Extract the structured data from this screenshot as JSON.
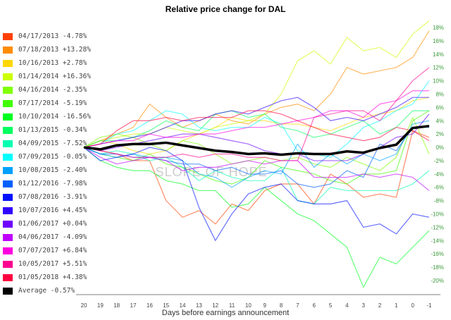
{
  "chart_data": {
    "type": "line",
    "title": "Relative price change for DAL",
    "xlabel": "Days before earnings announcement",
    "ylabel": "",
    "x": [
      20,
      19,
      18,
      17,
      16,
      15,
      14,
      13,
      12,
      11,
      10,
      9,
      8,
      7,
      6,
      5,
      4,
      3,
      2,
      1,
      0,
      -1
    ],
    "ylim": [
      -20,
      18
    ],
    "yticks": [
      "18%",
      "16%",
      "14%",
      "12%",
      "10%",
      "8%",
      "6%",
      "4%",
      "2%",
      "0%",
      "-2%",
      "-4%",
      "-6%",
      "-8%",
      "-10%",
      "-12%",
      "-14%",
      "-16%",
      "-18%",
      "-20%"
    ],
    "ytick_values": [
      18,
      16,
      14,
      12,
      10,
      8,
      6,
      4,
      2,
      0,
      -2,
      -4,
      -6,
      -8,
      -10,
      -12,
      -14,
      -16,
      -18,
      -20
    ],
    "grid": false,
    "legend_position": "left",
    "watermark": "SLOPE OF HOPE",
    "series": [
      {
        "name": "04/17/2013 -4.78%",
        "color": "#ff4000",
        "values": [
          0,
          -0.5,
          -1,
          -2,
          -2,
          -8,
          -10.5,
          -9.5,
          -11.5,
          -8.5,
          -9.5,
          -6.5,
          -5.5,
          -5.5,
          -8.5,
          -4,
          -5.5,
          -7.5,
          -7,
          -7.5,
          2.5,
          1.5
        ]
      },
      {
        "name": "07/18/2013 +13.28%",
        "color": "#ff8c00",
        "values": [
          0,
          1,
          2,
          3,
          6.5,
          4.5,
          3,
          4,
          5,
          4,
          3.5,
          5,
          6,
          6.5,
          5.5,
          8,
          12,
          11,
          11.5,
          12,
          13.5,
          17.5
        ]
      },
      {
        "name": "10/16/2013 +2.78%",
        "color": "#ffd700",
        "values": [
          0,
          1,
          0.5,
          -0.5,
          -1,
          -0.5,
          1,
          2,
          3,
          4.5,
          4,
          4,
          3.5,
          3.5,
          3,
          2.5,
          3.5,
          4.5,
          5,
          5.5,
          7,
          7.5
        ]
      },
      {
        "name": "01/14/2014 +16.36%",
        "color": "#ccff00",
        "values": [
          0,
          1,
          1.5,
          2,
          2,
          3,
          2.5,
          2,
          3,
          3.5,
          4,
          5,
          8,
          13,
          14.5,
          12.5,
          16.5,
          14.5,
          15,
          13.5,
          17,
          19
        ]
      },
      {
        "name": "04/16/2014 -2.35%",
        "color": "#80ff00",
        "values": [
          0,
          1.5,
          2,
          1.5,
          0.5,
          -0.5,
          1,
          0.5,
          -1,
          -2.5,
          -2,
          -1.5,
          -2,
          -1.5,
          -2.5,
          -3,
          -1.5,
          -2.5,
          -3.5,
          -1.5,
          4.5,
          -1
        ]
      },
      {
        "name": "07/17/2014 -5.19%",
        "color": "#40ff00",
        "values": [
          0,
          -1,
          -1.5,
          -2,
          -1,
          -2.5,
          -3,
          -4,
          -5,
          -5.5,
          -4.5,
          -2,
          -3,
          -3.5,
          -4,
          -5,
          -5.5,
          -4,
          -4,
          -3.5,
          4,
          5.5
        ]
      },
      {
        "name": "10/10/2014 -16.56%",
        "color": "#00ff20",
        "values": [
          0,
          -2,
          -3,
          -3.5,
          -3.5,
          -5,
          -5.5,
          -6.5,
          -6.5,
          -9,
          -8.5,
          -6,
          -8,
          -10,
          -11,
          -13,
          -15,
          -21,
          -16.5,
          -17.5,
          -15,
          -12.5
        ]
      },
      {
        "name": "01/13/2015 -0.34%",
        "color": "#00ff60",
        "values": [
          0,
          1,
          1,
          1.5,
          2.5,
          4,
          3,
          2.5,
          5,
          5.5,
          4.5,
          5,
          3,
          2.5,
          1.5,
          2,
          3,
          4,
          2,
          3,
          5.5,
          5.5
        ]
      },
      {
        "name": "04/09/2015 -7.52%",
        "color": "#00ffb0",
        "values": [
          0,
          -1,
          -0.5,
          -1,
          -2,
          -1.5,
          -3,
          -5,
          -3.5,
          -4.5,
          -5,
          -5,
          -3,
          -8,
          -8.5,
          -6,
          -6.5,
          -6.5,
          -6.5,
          -6.5,
          -5.5,
          -3.5
        ]
      },
      {
        "name": "07/09/2015 -0.05%",
        "color": "#00ffff",
        "values": [
          0,
          0.5,
          2,
          2.5,
          4,
          5.5,
          5,
          3,
          2.5,
          3,
          3,
          4.5,
          3.5,
          -0.5,
          -1,
          -1.5,
          0.5,
          3,
          4,
          5.5,
          6.5,
          10
        ]
      },
      {
        "name": "10/08/2015 -2.40%",
        "color": "#00a0ff",
        "values": [
          0,
          -1,
          -1.5,
          -1,
          -1.5,
          -1.5,
          -2,
          -4,
          -4.5,
          -6,
          -4.5,
          -3.5,
          -4,
          0.5,
          -3,
          -1,
          -2.5,
          -1,
          -2,
          -1,
          3.5,
          4
        ]
      },
      {
        "name": "01/12/2016 -7.98%",
        "color": "#0060ff",
        "values": [
          0,
          -1,
          -1,
          -1.5,
          -1.5,
          -2,
          -2.5,
          -2.5,
          -3.5,
          -3,
          -4,
          -4,
          -3.5,
          -5.5,
          -6,
          -5.5,
          -3.5,
          -4.5,
          0.5,
          -0.5,
          3,
          3
        ]
      },
      {
        "name": "07/08/2016 -3.91%",
        "color": "#0010ff",
        "values": [
          0,
          -2,
          -1.5,
          -1,
          0,
          -0.5,
          -2,
          -9,
          -14,
          -10,
          -7,
          -6,
          -5.5,
          -8,
          -8.5,
          -8.5,
          -8,
          -12,
          -11.5,
          -13,
          -10,
          -10.5
        ]
      },
      {
        "name": "10/07/2016 +4.45%",
        "color": "#3000ff",
        "values": [
          0,
          0.5,
          1,
          1.5,
          2,
          3,
          4,
          4,
          5,
          5.5,
          5,
          6,
          7,
          7.5,
          6,
          4,
          4.5,
          4,
          5,
          6,
          7.5,
          7.5
        ]
      },
      {
        "name": "01/06/2017 +0.04%",
        "color": "#7000ff",
        "values": [
          0,
          -0.5,
          0,
          0.5,
          1,
          1.5,
          2,
          2,
          1.5,
          1,
          0.5,
          -0.5,
          -1,
          -1,
          -2,
          -2,
          -2,
          -1,
          0,
          1.5,
          2,
          5
        ]
      },
      {
        "name": "04/06/2017 -4.09%",
        "color": "#c000ff",
        "values": [
          0,
          -1.5,
          -2.5,
          -2,
          -1.5,
          -2,
          -3.5,
          -3,
          -3,
          -2.5,
          -2,
          -2.5,
          -2,
          -2,
          -4.5,
          -4.5,
          -4.5,
          -4,
          -4.5,
          -4,
          -4.5,
          -6.5
        ]
      },
      {
        "name": "07/07/2017 +6.84%",
        "color": "#ff00e0",
        "values": [
          0,
          0.5,
          1,
          1,
          2,
          1.5,
          1.5,
          2,
          2,
          2.5,
          3,
          3,
          3.5,
          4,
          4.5,
          5.5,
          5.5,
          4.5,
          6.5,
          7,
          8.5,
          8.5
        ]
      },
      {
        "name": "10/05/2017 +5.51%",
        "color": "#ff0090",
        "values": [
          0,
          -0.5,
          -1,
          -1.5,
          -1.5,
          -1.5,
          -1,
          -1.5,
          -1,
          -1,
          -1.5,
          -1.5,
          -2,
          -2,
          4.5,
          5,
          5.5,
          5.5,
          4,
          7,
          10,
          12
        ]
      },
      {
        "name": "01/05/2018 +4.38%",
        "color": "#ff0040",
        "values": [
          0,
          0.5,
          2.5,
          4,
          4,
          4.5,
          4,
          4.5,
          4.5,
          4.5,
          5.5,
          5.5,
          5,
          4,
          3,
          2,
          1.5,
          1,
          1.5,
          3,
          2.5,
          1
        ]
      },
      {
        "name": "Average -0.57%",
        "color": "#000000",
        "values": [
          0,
          -0.3,
          0.3,
          0.5,
          0.5,
          0.7,
          0.3,
          -0.1,
          -0.5,
          -0.7,
          -1,
          -0.9,
          -1.1,
          -0.9,
          -1,
          -1,
          -0.6,
          -0.8,
          -0.1,
          0.4,
          2.9,
          3.2
        ]
      }
    ]
  }
}
